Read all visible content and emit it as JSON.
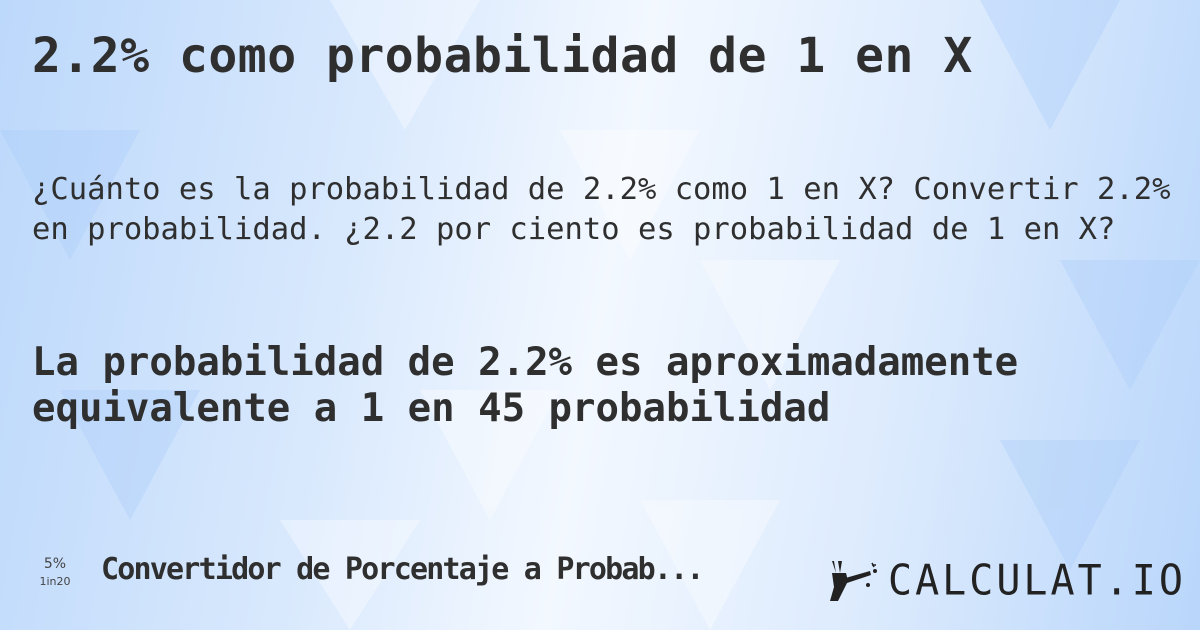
{
  "title": "2.2% como probabilidad de 1 en X",
  "question": "¿Cuánto es la probabilidad de 2.2% como 1 en X? Convertir 2.2% en probabilidad. ¿2.2 por ciento es probabilidad de 1 en X?",
  "answer": "La probabilidad de 2.2% es aproximadamente equivalente a 1 en 45 probabilidad",
  "footer": {
    "icon_top": "5%",
    "icon_bottom": "1in20",
    "link": "Convertidor de Porcentaje a Probab...",
    "logo_text": "CALCULAT.IO",
    "logo_icon": "magic-hand-icon"
  },
  "colors": {
    "text": "#2f2f2f",
    "background_light": "#f3f8ff",
    "background_blue": "#b9d6fb"
  }
}
